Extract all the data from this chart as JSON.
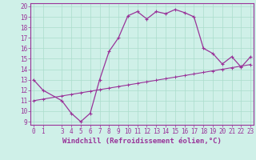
{
  "title": "",
  "xlabel": "Windchill (Refroidissement éolien,°C)",
  "ylabel": "",
  "background_color": "#cff0e8",
  "line_color": "#993399",
  "x_main": [
    0,
    1,
    3,
    4,
    5,
    6,
    7,
    8,
    9,
    10,
    11,
    12,
    13,
    14,
    15,
    16,
    17,
    18,
    19,
    20,
    21,
    22,
    23
  ],
  "y_main": [
    13,
    12,
    11,
    9.8,
    9,
    9.8,
    13,
    15.7,
    17,
    19.1,
    19.5,
    18.8,
    19.5,
    19.3,
    19.7,
    19.4,
    19,
    16,
    15.5,
    14.5,
    15.2,
    14.2,
    15.2
  ],
  "x_line2": [
    0,
    1,
    3,
    4,
    5,
    6,
    7,
    8,
    9,
    10,
    11,
    12,
    13,
    14,
    15,
    16,
    17,
    18,
    19,
    20,
    21,
    22,
    23
  ],
  "y_line2": [
    11.0,
    11.15,
    11.45,
    11.6,
    11.75,
    11.9,
    12.05,
    12.2,
    12.35,
    12.5,
    12.65,
    12.8,
    12.95,
    13.1,
    13.25,
    13.4,
    13.55,
    13.7,
    13.85,
    14.0,
    14.15,
    14.3,
    14.45
  ],
  "xlim": [
    -0.3,
    23.3
  ],
  "ylim": [
    8.7,
    20.3
  ],
  "yticks": [
    9,
    10,
    11,
    12,
    13,
    14,
    15,
    16,
    17,
    18,
    19,
    20
  ],
  "xticks": [
    0,
    1,
    3,
    4,
    5,
    6,
    7,
    8,
    9,
    10,
    11,
    12,
    13,
    14,
    15,
    16,
    17,
    18,
    19,
    20,
    21,
    22,
    23
  ],
  "tick_fontsize": 5.5,
  "xlabel_fontsize": 6.5,
  "grid_color": "#aaddcc",
  "grid_linewidth": 0.5,
  "spine_color": "#993399"
}
